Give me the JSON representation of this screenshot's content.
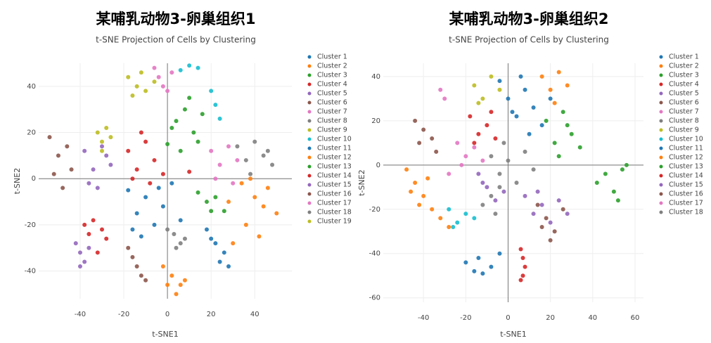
{
  "chart_data": [
    {
      "type": "scatter",
      "title": "某哺乳动物3-卵巢组织1",
      "subtitle": "t-SNE Projection of Cells by Clustering",
      "xlabel": "t-SNE1",
      "ylabel": "t-SNE2",
      "xlim": [
        -59,
        57
      ],
      "ylim": [
        -52,
        50
      ],
      "xticks": [
        -40,
        -20,
        0,
        20,
        40
      ],
      "yticks": [
        -40,
        -20,
        0,
        20,
        40
      ],
      "grid": true,
      "zeroline": true,
      "legend": "right",
      "series": [
        {
          "name": "Cluster 1",
          "color": "#1f77b4",
          "x": [
            -18,
            -14,
            -10,
            -6,
            -2,
            2,
            6,
            -12,
            -4,
            -16
          ],
          "y": [
            -5,
            -15,
            -8,
            -20,
            -12,
            -2,
            -18,
            -25,
            -4,
            -22
          ]
        },
        {
          "name": "Cluster 2",
          "color": "#ff7f0e",
          "x": [
            28,
            34,
            40,
            46,
            50,
            36,
            42,
            30,
            44,
            38
          ],
          "y": [
            -10,
            -2,
            -8,
            -4,
            -15,
            -20,
            -25,
            -28,
            -12,
            0
          ]
        },
        {
          "name": "Cluster 3",
          "color": "#2ca02c",
          "x": [
            0,
            4,
            8,
            12,
            16,
            6,
            10,
            2,
            14
          ],
          "y": [
            15,
            25,
            30,
            20,
            28,
            12,
            35,
            22,
            16
          ]
        },
        {
          "name": "Cluster 4",
          "color": "#d62728",
          "x": [
            -18,
            -14,
            -10,
            -6,
            -2,
            -12,
            -8,
            -16,
            10
          ],
          "y": [
            12,
            4,
            16,
            8,
            2,
            20,
            -2,
            0,
            3
          ]
        },
        {
          "name": "Cluster 5",
          "color": "#9467bd",
          "x": [
            -38,
            -34,
            -30,
            -26,
            -36,
            -32,
            -28
          ],
          "y": [
            12,
            4,
            14,
            6,
            -2,
            -4,
            10
          ]
        },
        {
          "name": "Cluster 6",
          "color": "#8c564b",
          "x": [
            -54,
            -50,
            -46,
            -44,
            -52,
            -48
          ],
          "y": [
            18,
            10,
            14,
            4,
            2,
            -4
          ]
        },
        {
          "name": "Cluster 7",
          "color": "#e377c2",
          "x": [
            20,
            24,
            28,
            32,
            22,
            30
          ],
          "y": [
            12,
            6,
            14,
            8,
            0,
            -2
          ]
        },
        {
          "name": "Cluster 8",
          "color": "#7f7f7f",
          "x": [
            32,
            36,
            40,
            44,
            48,
            38,
            46
          ],
          "y": [
            14,
            8,
            16,
            10,
            6,
            2,
            12
          ]
        },
        {
          "name": "Cluster 9",
          "color": "#bcbd22",
          "x": [
            -18,
            -14,
            -10,
            -6,
            -16,
            -12
          ],
          "y": [
            44,
            40,
            38,
            42,
            36,
            46
          ]
        },
        {
          "name": "Cluster 10",
          "color": "#17becf",
          "x": [
            6,
            10,
            14,
            20,
            22,
            24
          ],
          "y": [
            47,
            49,
            48,
            38,
            32,
            26
          ]
        },
        {
          "name": "Cluster 11",
          "color": "#1f77b4",
          "x": [
            18,
            22,
            26,
            28,
            24,
            20
          ],
          "y": [
            -22,
            -28,
            -32,
            -38,
            -36,
            -26
          ]
        },
        {
          "name": "Cluster 12",
          "color": "#ff7f0e",
          "x": [
            -2,
            2,
            6,
            8,
            4,
            0
          ],
          "y": [
            -38,
            -42,
            -46,
            -44,
            -50,
            -46
          ]
        },
        {
          "name": "Cluster 13",
          "color": "#2ca02c",
          "x": [
            14,
            18,
            22,
            26,
            20
          ],
          "y": [
            -6,
            -10,
            -8,
            -14,
            -14
          ]
        },
        {
          "name": "Cluster 14",
          "color": "#d62728",
          "x": [
            -38,
            -34,
            -30,
            -28,
            -36,
            -32
          ],
          "y": [
            -20,
            -18,
            -22,
            -26,
            -24,
            -32
          ]
        },
        {
          "name": "Cluster 15",
          "color": "#9467bd",
          "x": [
            -42,
            -40,
            -38,
            -36,
            -40
          ],
          "y": [
            -28,
            -32,
            -36,
            -30,
            -38
          ]
        },
        {
          "name": "Cluster 16",
          "color": "#8c564b",
          "x": [
            -18,
            -16,
            -14,
            -12,
            -10
          ],
          "y": [
            -30,
            -34,
            -38,
            -42,
            -44
          ]
        },
        {
          "name": "Cluster 17",
          "color": "#e377c2",
          "x": [
            -6,
            -4,
            -2,
            0,
            2
          ],
          "y": [
            48,
            44,
            40,
            38,
            46
          ]
        },
        {
          "name": "Cluster 18",
          "color": "#7f7f7f",
          "x": [
            0,
            3,
            6,
            8,
            4
          ],
          "y": [
            -22,
            -24,
            -28,
            -26,
            -30
          ]
        },
        {
          "name": "Cluster 19",
          "color": "#bcbd22",
          "x": [
            -32,
            -30,
            -28,
            -26,
            -30
          ],
          "y": [
            20,
            16,
            22,
            18,
            12
          ]
        }
      ]
    },
    {
      "type": "scatter",
      "title": "某哺乳动物3-卵巢组织2",
      "subtitle": "t-SNE Projection of Cells by Clustering",
      "xlabel": "t-SNE1",
      "ylabel": "t-SNE2",
      "xlim": [
        -59,
        64
      ],
      "ylim": [
        -62,
        46
      ],
      "xticks": [
        -40,
        -20,
        0,
        20,
        40,
        60
      ],
      "yticks": [
        -60,
        -40,
        -20,
        0,
        20,
        40
      ],
      "grid": true,
      "zeroline": true,
      "legend": "right",
      "series": [
        {
          "name": "Cluster 1",
          "color": "#1f77b4",
          "x": [
            -4,
            0,
            4,
            8,
            12,
            16,
            20,
            6,
            10,
            2
          ],
          "y": [
            38,
            30,
            22,
            34,
            26,
            18,
            30,
            40,
            14,
            24
          ]
        },
        {
          "name": "Cluster 2",
          "color": "#ff7f0e",
          "x": [
            -48,
            -44,
            -40,
            -36,
            -32,
            -28,
            -42,
            -38,
            -46
          ],
          "y": [
            -2,
            -8,
            -14,
            -20,
            -24,
            -28,
            -18,
            -6,
            -12
          ]
        },
        {
          "name": "Cluster 3",
          "color": "#2ca02c",
          "x": [
            18,
            22,
            26,
            30,
            34,
            24,
            28
          ],
          "y": [
            20,
            10,
            24,
            14,
            8,
            4,
            18
          ]
        },
        {
          "name": "Cluster 4",
          "color": "#d62728",
          "x": [
            -18,
            -14,
            -10,
            -6,
            -16,
            -8
          ],
          "y": [
            22,
            14,
            18,
            12,
            10,
            24
          ]
        },
        {
          "name": "Cluster 5",
          "color": "#9467bd",
          "x": [
            8,
            12,
            16,
            20,
            24,
            28,
            14
          ],
          "y": [
            -14,
            -22,
            -18,
            -26,
            -16,
            -22,
            -12
          ]
        },
        {
          "name": "Cluster 6",
          "color": "#8c564b",
          "x": [
            14,
            18,
            22,
            26,
            20,
            16
          ],
          "y": [
            -18,
            -24,
            -30,
            -20,
            -34,
            -28
          ]
        },
        {
          "name": "Cluster 7",
          "color": "#e377c2",
          "x": [
            -24,
            -20,
            -16,
            -12,
            -22
          ],
          "y": [
            10,
            4,
            8,
            2,
            0
          ]
        },
        {
          "name": "Cluster 8",
          "color": "#7f7f7f",
          "x": [
            -8,
            -4,
            0,
            4,
            8,
            12,
            -2
          ],
          "y": [
            4,
            -4,
            2,
            -8,
            6,
            -2,
            10
          ]
        },
        {
          "name": "Cluster 9",
          "color": "#bcbd22",
          "x": [
            -16,
            -12,
            -8,
            -4,
            -14
          ],
          "y": [
            36,
            30,
            40,
            34,
            28
          ]
        },
        {
          "name": "Cluster 10",
          "color": "#17becf",
          "x": [
            -28,
            -24,
            -20,
            -16,
            -26
          ],
          "y": [
            -20,
            -26,
            -22,
            -24,
            -28
          ]
        },
        {
          "name": "Cluster 11",
          "color": "#1f77b4",
          "x": [
            -20,
            -16,
            -12,
            -8,
            -4,
            -14
          ],
          "y": [
            -44,
            -48,
            -49,
            -46,
            -40,
            -42
          ]
        },
        {
          "name": "Cluster 12",
          "color": "#ff7f0e",
          "x": [
            16,
            20,
            24,
            28,
            22
          ],
          "y": [
            40,
            34,
            42,
            36,
            28
          ]
        },
        {
          "name": "Cluster 13",
          "color": "#2ca02c",
          "x": [
            42,
            46,
            50,
            54,
            56,
            52
          ],
          "y": [
            -8,
            -4,
            -12,
            -2,
            0,
            -16
          ]
        },
        {
          "name": "Cluster 14",
          "color": "#d62728",
          "x": [
            6,
            7,
            8,
            7,
            6
          ],
          "y": [
            -38,
            -42,
            -46,
            -50,
            -52
          ]
        },
        {
          "name": "Cluster 15",
          "color": "#9467bd",
          "x": [
            -14,
            -10,
            -6,
            -2,
            -12
          ],
          "y": [
            -4,
            -10,
            -16,
            -12,
            -8
          ]
        },
        {
          "name": "Cluster 16",
          "color": "#8c564b",
          "x": [
            -44,
            -40,
            -36,
            -34,
            -42
          ],
          "y": [
            20,
            16,
            12,
            6,
            10
          ]
        },
        {
          "name": "Cluster 17",
          "color": "#e377c2",
          "x": [
            -32,
            -30,
            -28
          ],
          "y": [
            34,
            30,
            -4
          ]
        },
        {
          "name": "Cluster 18",
          "color": "#7f7f7f",
          "x": [
            -12,
            -8,
            -4,
            -6
          ],
          "y": [
            -18,
            -14,
            -10,
            -22
          ]
        }
      ]
    }
  ]
}
